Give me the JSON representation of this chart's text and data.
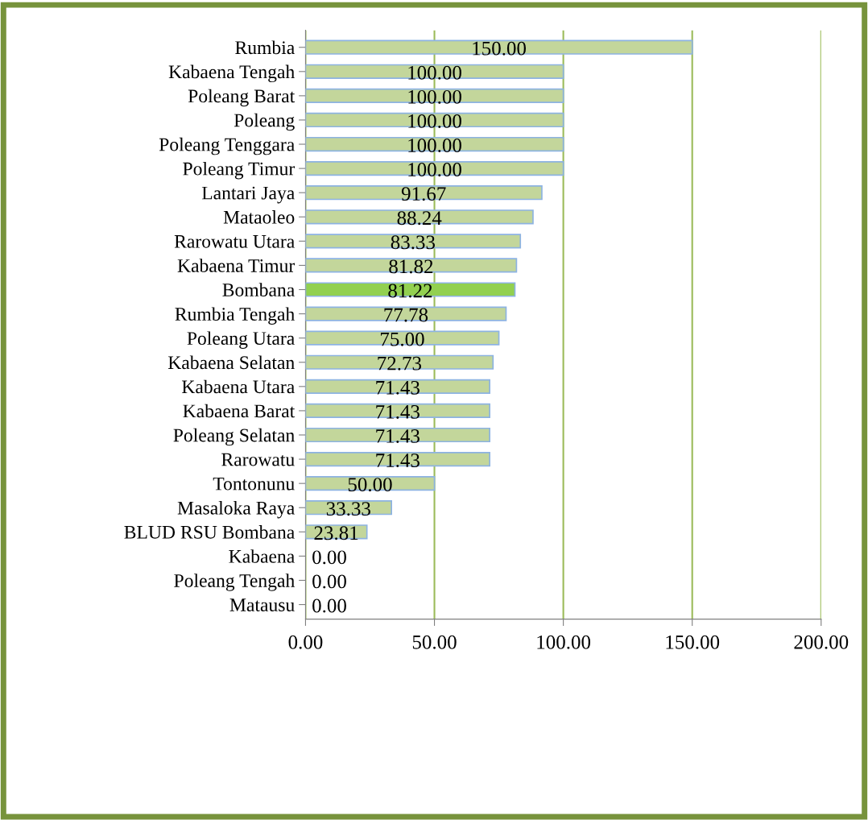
{
  "chart_data": {
    "type": "bar",
    "orientation": "horizontal",
    "categories": [
      "Rumbia",
      "Kabaena Tengah",
      "Poleang Barat",
      "Poleang",
      "Poleang Tenggara",
      "Poleang Timur",
      "Lantari Jaya",
      "Mataoleo",
      "Rarowatu Utara",
      "Kabaena Timur",
      "Bombana",
      "Rumbia Tengah",
      "Poleang Utara",
      "Kabaena Selatan",
      "Kabaena Utara",
      "Kabaena Barat",
      "Poleang Selatan",
      "Rarowatu",
      "Tontonunu",
      "Masaloka Raya",
      "BLUD RSU Bombana",
      "Kabaena",
      "Poleang Tengah",
      "Matausu"
    ],
    "values": [
      150.0,
      100.0,
      100.0,
      100.0,
      100.0,
      100.0,
      91.67,
      88.24,
      83.33,
      81.82,
      81.22,
      77.78,
      75.0,
      72.73,
      71.43,
      71.43,
      71.43,
      71.43,
      50.0,
      33.33,
      23.81,
      0.0,
      0.0,
      0.0
    ],
    "colors": [
      "#c3d69b",
      "#c3d69b",
      "#c3d69b",
      "#c3d69b",
      "#c3d69b",
      "#c3d69b",
      "#c3d69b",
      "#c3d69b",
      "#c3d69b",
      "#c3d69b",
      "#92d050",
      "#c3d69b",
      "#c3d69b",
      "#c3d69b",
      "#c3d69b",
      "#c3d69b",
      "#c3d69b",
      "#c3d69b",
      "#c3d69b",
      "#c3d69b",
      "#c3d69b",
      "#c3d69b",
      "#c3d69b",
      "#c3d69b"
    ],
    "value_labels": [
      "150.00",
      "100.00",
      "100.00",
      "100.00",
      "100.00",
      "100.00",
      "91.67",
      "88.24",
      "83.33",
      "81.82",
      "81.22",
      "77.78",
      "75.00",
      "72.73",
      "71.43",
      "71.43",
      "71.43",
      "71.43",
      "50.00",
      "33.33",
      "23.81",
      "0.00",
      "0.00",
      "0.00"
    ],
    "xlim": [
      0,
      200
    ],
    "xticks": [
      {
        "value": 0,
        "label": "0.00"
      },
      {
        "value": 50,
        "label": "50.00"
      },
      {
        "value": 100,
        "label": "100.00"
      },
      {
        "value": 150,
        "label": "150.00"
      },
      {
        "value": 200,
        "label": "200.00"
      }
    ],
    "grid": "x",
    "legend": false
  }
}
